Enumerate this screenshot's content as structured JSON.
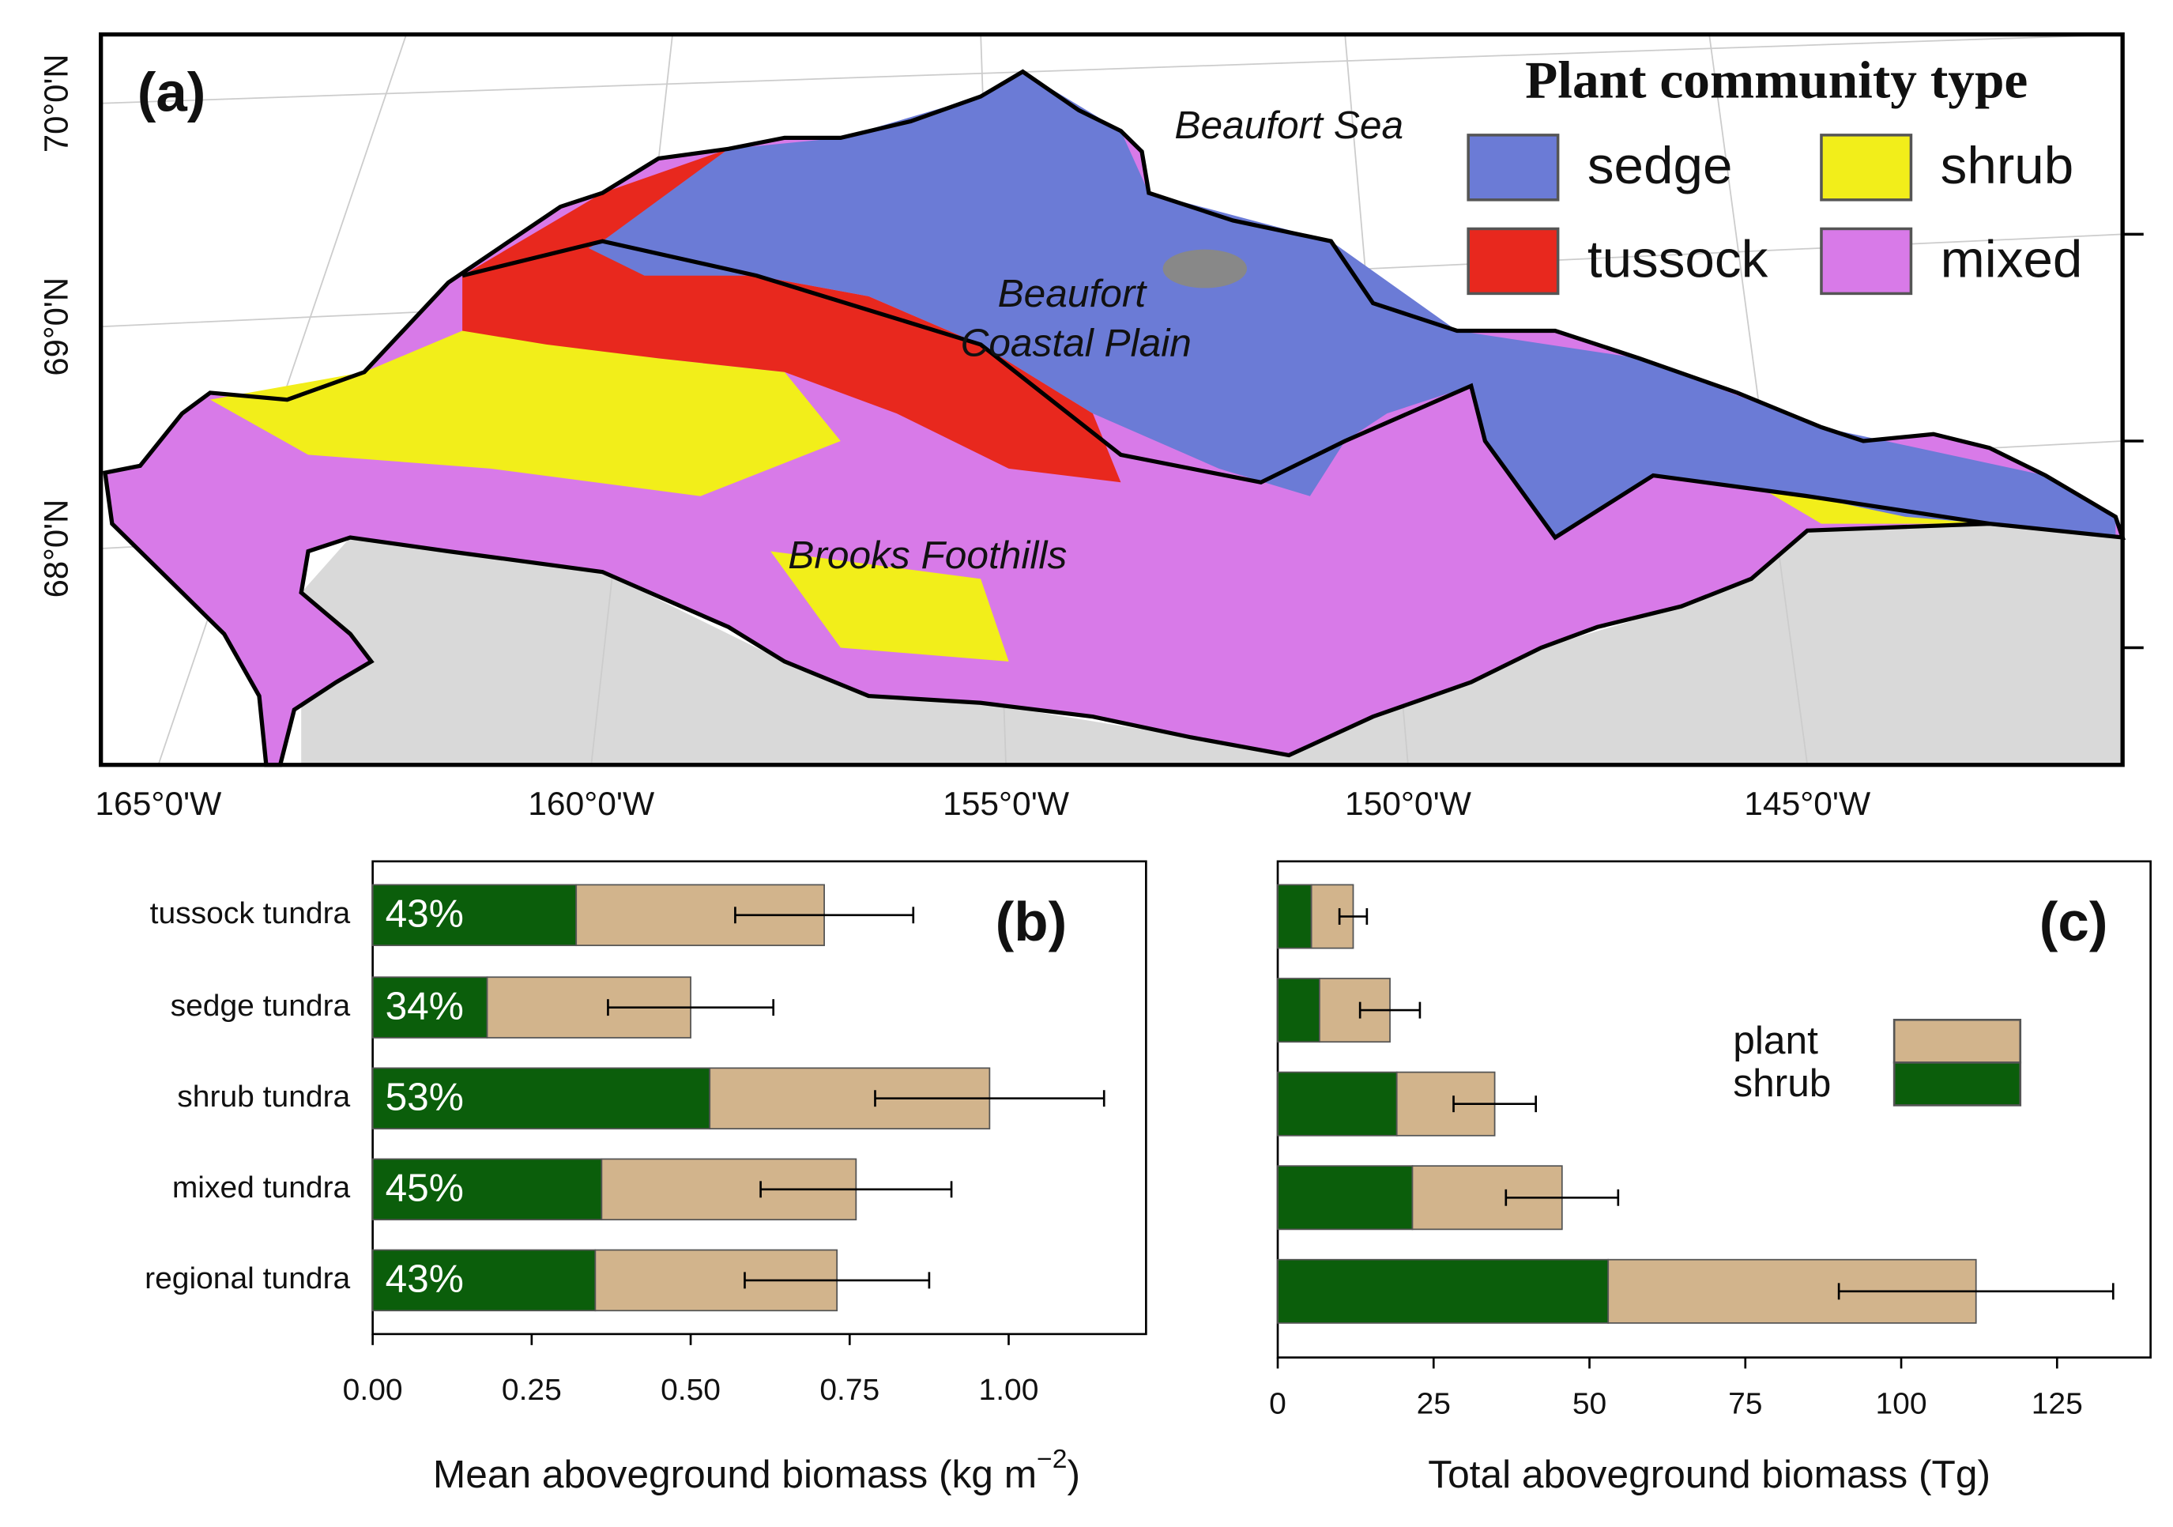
{
  "map": {
    "panel_label": "(a)",
    "legend_title": "Plant community type",
    "legend": [
      {
        "name": "sedge",
        "color": "#6b7bd6"
      },
      {
        "name": "shrub",
        "color": "#f2ee1a"
      },
      {
        "name": "tussock",
        "color": "#e8281e"
      },
      {
        "name": "mixed",
        "color": "#d87ae8"
      }
    ],
    "place_labels": [
      "Beaufort Sea",
      "Beaufort",
      "Coastal Plain",
      "Brooks Foothills"
    ],
    "lat_labels": [
      "70°0'N",
      "69°0'N",
      "68°0'N"
    ],
    "lon_labels": [
      "165°0'W",
      "160°0'W",
      "155°0'W",
      "150°0'W",
      "145°0'W"
    ]
  },
  "chart_data": [
    {
      "type": "bar",
      "orientation": "horizontal",
      "stacked": true,
      "panel_label": "(b)",
      "categories": [
        "tussock tundra",
        "sedge tundra",
        "shrub tundra",
        "mixed tundra",
        "regional tundra"
      ],
      "series": [
        {
          "color": "#0b5e0b",
          "values": [
            0.32,
            0.18,
            0.53,
            0.36,
            0.35
          ]
        },
        {
          "color": "#d2b48c",
          "values": [
            0.39,
            0.32,
            0.44,
            0.4,
            0.38
          ],
          "errors": [
            0.14,
            0.13,
            0.18,
            0.15,
            0.145
          ]
        }
      ],
      "annotations": [
        "43%",
        "34%",
        "53%",
        "45%",
        "43%"
      ],
      "xlim": [
        0,
        1.216
      ],
      "xticks": [
        {
          "value": 0,
          "label": "0.00"
        },
        {
          "value": 0.25,
          "label": "0.25"
        },
        {
          "value": 0.5,
          "label": "0.50"
        },
        {
          "value": 0.75,
          "label": "0.75"
        },
        {
          "value": 1,
          "label": "1.00"
        }
      ],
      "xlabel": "Mean aboveground biomass (kg m",
      "xlabel_superscript": "−2",
      "xlabel_suffix": ")"
    },
    {
      "type": "bar",
      "orientation": "horizontal",
      "stacked": true,
      "panel_label": "(c)",
      "categories": [
        null,
        null,
        null,
        null,
        null
      ],
      "series": [
        {
          "name": "shrub",
          "color": "#0b5e0b",
          "values": [
            5.4,
            6.7,
            19.1,
            21.6,
            53
          ]
        },
        {
          "name": "plant",
          "color": "#d2b48c",
          "values": [
            6.7,
            11.3,
            15.7,
            24,
            59
          ],
          "errors": [
            2.2,
            4.8,
            6.6,
            9,
            22
          ]
        }
      ],
      "xlim": [
        0,
        140
      ],
      "xticks": [
        0,
        25,
        50,
        75,
        100,
        125
      ],
      "xlabel": "Total aboveground biomass (Tg)"
    }
  ]
}
